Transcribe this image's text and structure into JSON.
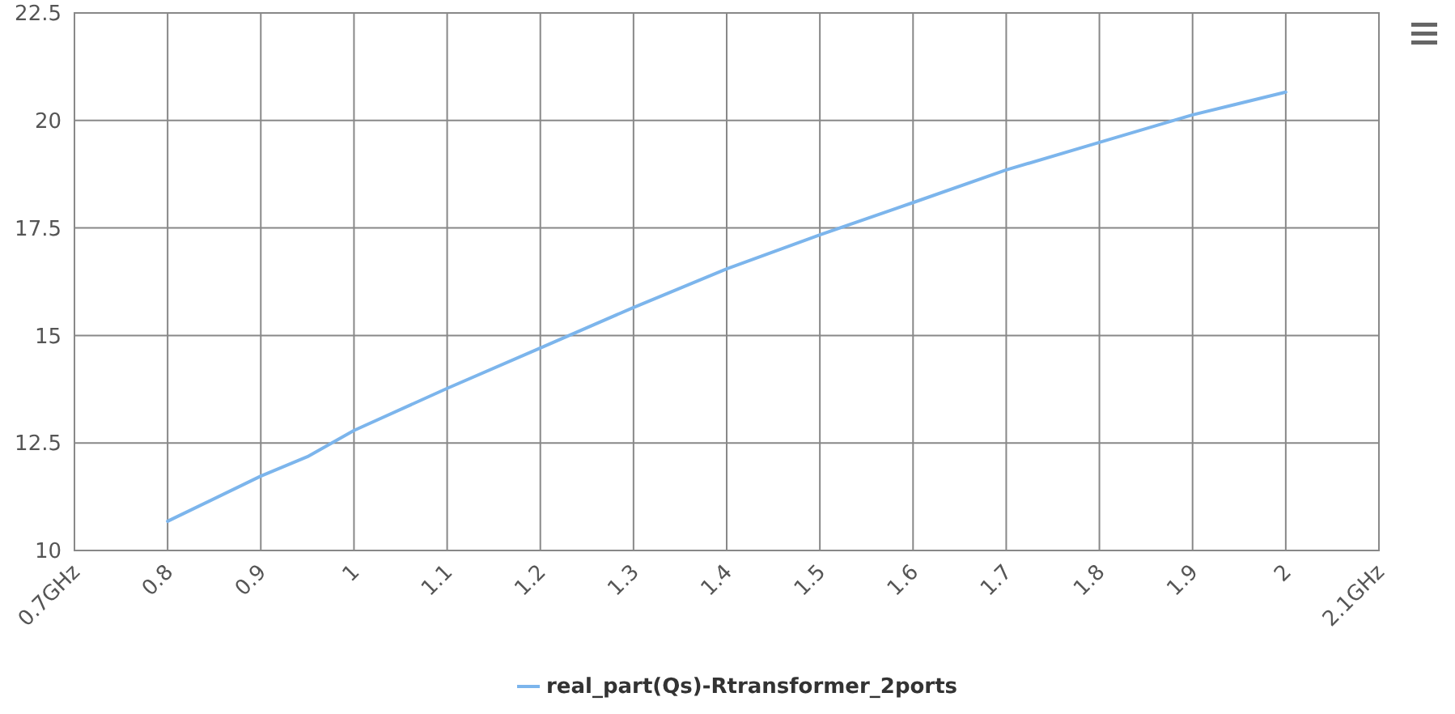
{
  "chart_data": {
    "type": "line",
    "x": [
      0.8,
      0.9,
      0.95,
      1.0,
      1.1,
      1.2,
      1.3,
      1.4,
      1.5,
      1.6,
      1.7,
      1.8,
      1.9,
      2.0
    ],
    "series": [
      {
        "name": "real_part(Qs)-Rtransformer_2ports",
        "color": "#7cb5ec",
        "values": [
          10.68,
          11.73,
          12.18,
          12.79,
          13.77,
          14.71,
          15.65,
          16.55,
          17.34,
          18.09,
          18.85,
          19.49,
          20.13,
          20.66
        ]
      }
    ],
    "xlim": [
      0.7,
      2.1
    ],
    "xticks": [
      {
        "value": 0.7,
        "label": "0.7GHz"
      },
      0.8,
      0.9,
      1,
      1.1,
      1.2,
      1.3,
      1.4,
      1.5,
      1.6,
      1.7,
      1.8,
      1.9,
      2,
      {
        "value": 2.1,
        "label": "2.1GHz"
      }
    ],
    "ylim": [
      10,
      22.5
    ],
    "yticks": [
      10,
      12.5,
      15,
      17.5,
      20,
      22.5
    ],
    "grid": true,
    "legend": "bottom",
    "marker": "none",
    "line_style": "solid"
  }
}
